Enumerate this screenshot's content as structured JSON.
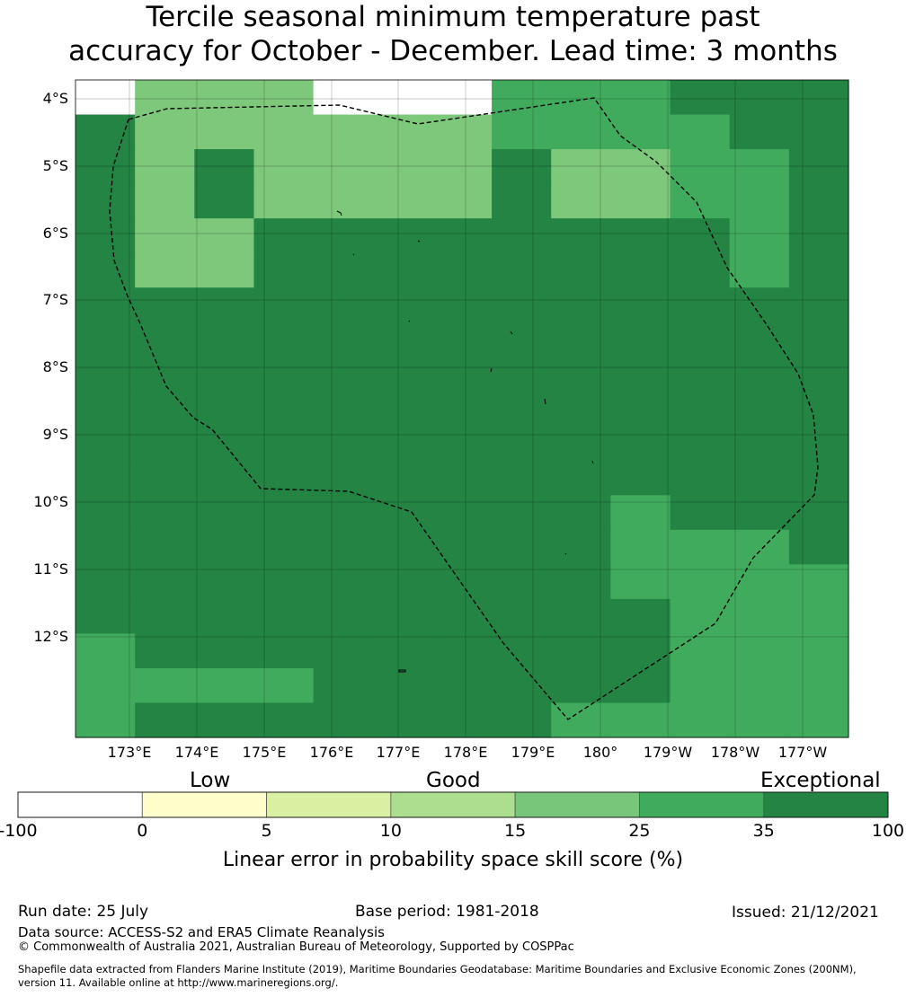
{
  "title": {
    "line1": "Tercile seasonal minimum temperature past",
    "line2": "accuracy for October - December. Lead time: 3 months"
  },
  "map": {
    "lat_labels": [
      "4°S",
      "5°S",
      "6°S",
      "7°S",
      "8°S",
      "9°S",
      "10°S",
      "11°S",
      "12°S"
    ],
    "lon_labels": [
      "173°E",
      "174°E",
      "175°E",
      "176°E",
      "177°E",
      "178°E",
      "179°E",
      "180°",
      "179°W",
      "178°W",
      "177°W"
    ],
    "colors": {
      "c1": "#7ec87b",
      "c2": "#41ab5d",
      "c3": "#238443"
    },
    "grid_rows": [
      "0111000222333",
      "3111111222233",
      "3131111311223",
      "3131111311223",
      "3113333333323",
      "3113333333323",
      "3333333333333",
      "3333333333333",
      "3333333333333",
      "3333333333333",
      "3333333333333",
      "3333333333333",
      "3333333332333",
      "3333333332223",
      "3333333332222",
      "3333333333222",
      "2333333333222",
      "2222333333222",
      "2333333322222"
    ]
  },
  "colorbar": {
    "categories": [
      "Low",
      "Good",
      "Exceptional"
    ],
    "segments": [
      {
        "from": -100,
        "to": 0,
        "color": "#ffffff"
      },
      {
        "from": 0,
        "to": 5,
        "color": "#ffffcc"
      },
      {
        "from": 5,
        "to": 10,
        "color": "#d9f0a3"
      },
      {
        "from": 10,
        "to": 15,
        "color": "#addd8e"
      },
      {
        "from": 15,
        "to": 25,
        "color": "#78c679"
      },
      {
        "from": 25,
        "to": 35,
        "color": "#41ab5d"
      },
      {
        "from": 35,
        "to": 100,
        "color": "#238443"
      }
    ],
    "ticks": [
      "-100",
      "0",
      "5",
      "10",
      "15",
      "25",
      "35",
      "100"
    ],
    "label": "Linear error in probability space skill score (%)"
  },
  "footer": {
    "run_date": "Run date: 25 July",
    "base_period": "Base period: 1981-2018",
    "issued": "Issued: 21/12/2021",
    "data_source": "Data source: ACCESS-S2 and ERA5 Climate Reanalysis",
    "copyright": "© Commonwealth of Australia 2021, Australian Bureau of Meteorology, Supported by COSPPac",
    "shapefile_line1": "Shapefile data extracted from Flanders Marine Institute (2019), Maritime Boundaries Geodatabase: Maritime Boundaries and Exclusive Economic Zones (200NM),",
    "shapefile_line2": "version 11. Available online at http://www.marineregions.org/."
  }
}
